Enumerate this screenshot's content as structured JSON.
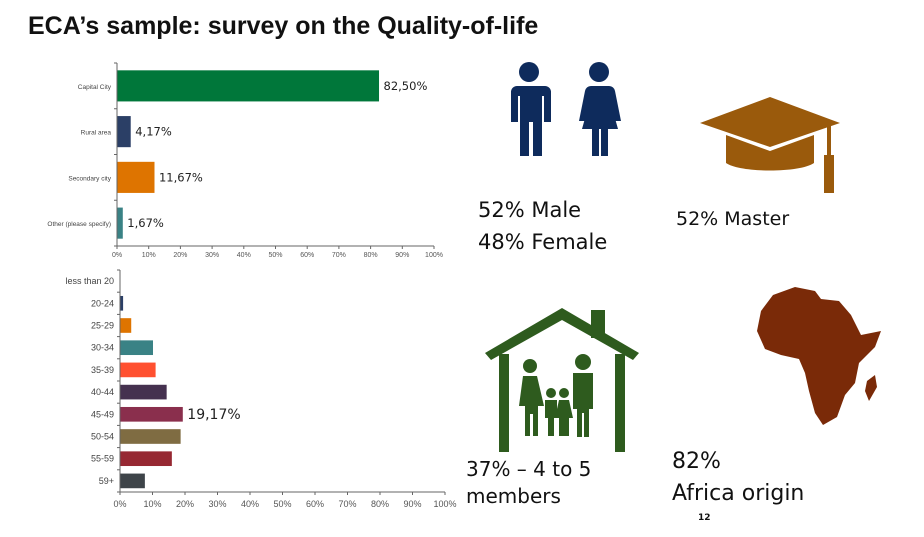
{
  "title": "ECA’s sample: survey on the Quality-of-life",
  "chart_data": [
    {
      "type": "bar",
      "orientation": "horizontal",
      "categories": [
        "Capital City",
        "Rural area",
        "Secondary city",
        "Other (please specify)"
      ],
      "values": [
        82.5,
        4.17,
        11.67,
        1.67
      ],
      "data_labels": [
        "82,50%",
        "4,17%",
        "11,67%",
        "1,67%"
      ],
      "colors": [
        "#00773A",
        "#2B3F66",
        "#DE7400",
        "#3A8285"
      ],
      "xlim": [
        0,
        100
      ],
      "ticks": [
        "0%",
        "10%",
        "20%",
        "30%",
        "40%",
        "50%",
        "60%",
        "70%",
        "80%",
        "90%",
        "100%"
      ]
    },
    {
      "type": "bar",
      "orientation": "horizontal",
      "categories": [
        "less than 20",
        "20-24",
        "25-29",
        "30-34",
        "35-39",
        "40-44",
        "45-49",
        "50-54",
        "55-59",
        "59+"
      ],
      "values": [
        0,
        0.8,
        3.3,
        10,
        10.8,
        14.2,
        19.17,
        18.5,
        15.8,
        7.5
      ],
      "data_labels": [
        "",
        "",
        "",
        "",
        "",
        "",
        "19,17%",
        "",
        "",
        ""
      ],
      "colors": [
        "#2B3F66",
        "#2B3F66",
        "#DE7400",
        "#3A8285",
        "#FF5030",
        "#45314F",
        "#8A2F4D",
        "#7F6C42",
        "#962832",
        "#3E4449"
      ],
      "xlim": [
        0,
        100
      ],
      "ticks": [
        "0%",
        "10%",
        "20%",
        "30%",
        "40%",
        "50%",
        "60%",
        "70%",
        "80%",
        "90%",
        "100%"
      ]
    }
  ],
  "stats": {
    "male": "52% Male",
    "female": "48% Female",
    "master": "52% Master",
    "household_1": "37% – 4 to 5",
    "household_2": "members",
    "africa_1": "82%",
    "africa_2": "Africa origin"
  },
  "page_number": "12",
  "colors": {
    "people": "#0E2B5C",
    "cap": "#9A5A0C",
    "house": "#2E5B1E",
    "africa": "#7A2A08"
  }
}
